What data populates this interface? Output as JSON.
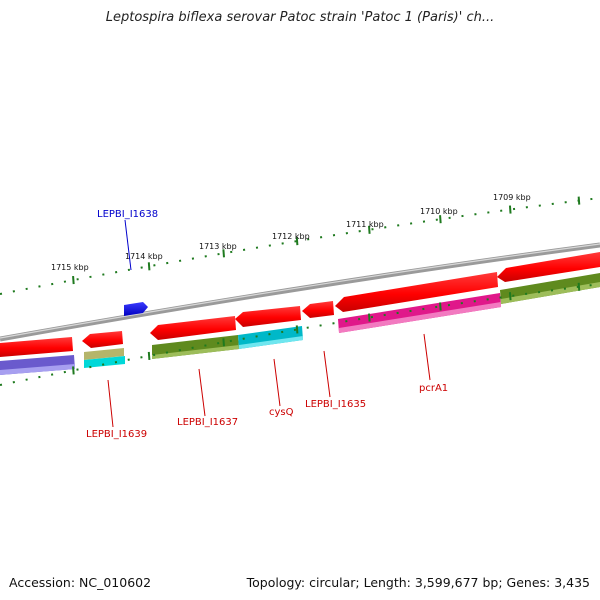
{
  "title": "Leptospira biflexa serovar Patoc strain 'Patoc 1 (Paris)' ch...",
  "footer": {
    "accession": "Accession: NC_010602",
    "topology": "Topology: circular; Length: 3,599,677 bp; Genes: 3,435"
  },
  "colors": {
    "backbone": "#8a8a8a",
    "tick": "#1f7a1f",
    "label_red": "#cc0000",
    "label_blue": "#0000cc"
  },
  "scale_ticks": [
    {
      "label": "1715 kbp"
    },
    {
      "label": "1714 kbp"
    },
    {
      "label": "1713 kbp"
    },
    {
      "label": "1712 kbp"
    },
    {
      "label": "1711 kbp"
    },
    {
      "label": "1710 kbp"
    },
    {
      "label": "1709 kbp"
    }
  ],
  "genes": [
    {
      "label": "LEPBI_I1638",
      "color": "#0000cc"
    },
    {
      "label": "LEPBI_I1639",
      "color": "#cc0000"
    },
    {
      "label": "LEPBI_I1637",
      "color": "#cc0000"
    },
    {
      "label": "cysQ",
      "color": "#cc0000"
    },
    {
      "label": "LEPBI_I1635",
      "color": "#cc0000"
    },
    {
      "label": "pcrA1",
      "color": "#cc0000"
    }
  ]
}
